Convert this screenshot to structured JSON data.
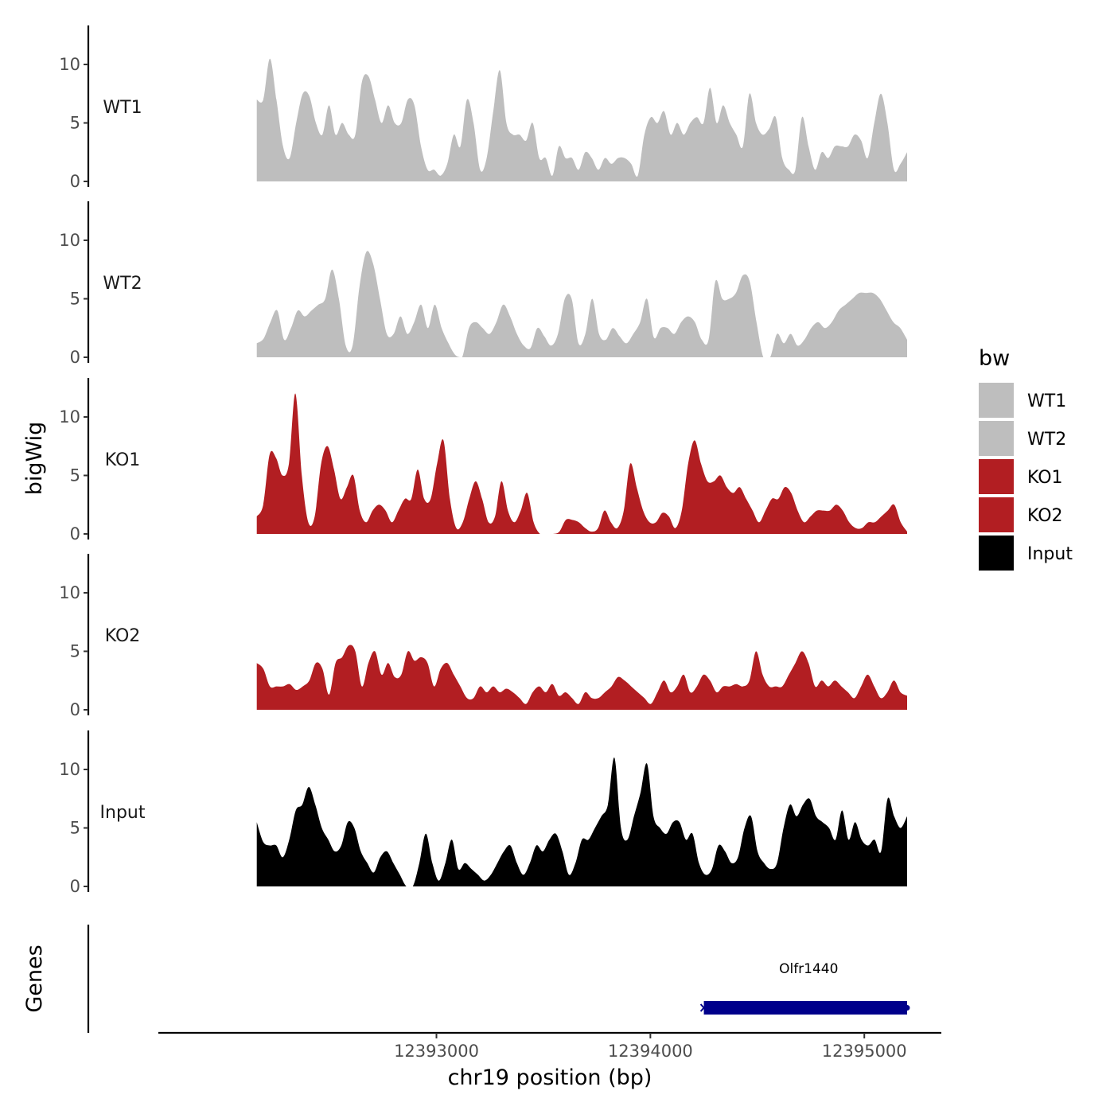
{
  "chart_data": {
    "type": "area",
    "ylabel": "bigWig",
    "xlabel": "chr19 position (bp)",
    "x_ticks": [
      {
        "value": 12393000,
        "label": "12393000"
      },
      {
        "value": 12394000,
        "label": "12394000"
      },
      {
        "value": 12395000,
        "label": "12395000"
      }
    ],
    "xlim": [
      12391700,
      12395360
    ],
    "ylim": [
      0,
      13.5
    ],
    "y_ticks": [
      {
        "value": 0,
        "label": "0"
      },
      {
        "value": 5,
        "label": "5"
      },
      {
        "value": 10,
        "label": "10"
      }
    ],
    "track_x_range": [
      12392160,
      12395200
    ],
    "legend": {
      "title": "bw",
      "position": "right"
    },
    "genes_label": "Genes",
    "series": [
      {
        "name": "WT1",
        "color": "#bebebe",
        "values": [
          7,
          7,
          10.5,
          7,
          3,
          2,
          5,
          7.5,
          7.3,
          5,
          4,
          6.5,
          4,
          5,
          4,
          4,
          8.5,
          9,
          7,
          5,
          6.5,
          5,
          5,
          7,
          6.5,
          3,
          1,
          1,
          0.5,
          1.5,
          4,
          3,
          7,
          5,
          1,
          2,
          6,
          9.5,
          5,
          4,
          4,
          3.5,
          5,
          2,
          2,
          0.5,
          3,
          2,
          2,
          1,
          2.5,
          2,
          1,
          2,
          1.5,
          2,
          2,
          1.5,
          0.5,
          4,
          5.5,
          5,
          6,
          4,
          5,
          4,
          5,
          5.5,
          5,
          8,
          5,
          6.5,
          5,
          4,
          3,
          7.5,
          5,
          4,
          4.5,
          5.5,
          2,
          1,
          1,
          5.5,
          3,
          1,
          2.5,
          2,
          3,
          3,
          3,
          4,
          3.5,
          2,
          5,
          7.5,
          5,
          1,
          1.5,
          2.5
        ]
      },
      {
        "name": "WT2",
        "color": "#bebebe",
        "values": [
          1.2,
          1.6,
          3,
          4,
          1.5,
          2.5,
          4,
          3.5,
          4,
          4.5,
          5,
          7.5,
          5,
          1,
          1,
          6,
          9,
          8,
          5,
          2,
          2,
          3.5,
          2,
          3,
          4.5,
          2.5,
          4.5,
          2.5,
          1.2,
          0.2,
          0,
          2.5,
          3,
          2.5,
          2,
          3,
          4.5,
          3.5,
          2,
          1,
          0.8,
          2.5,
          1.8,
          1,
          2,
          5,
          5,
          1.2,
          2,
          5,
          2,
          1.5,
          2.5,
          1.8,
          1.2,
          2,
          3,
          5,
          1.7,
          2.5,
          2.5,
          2,
          3,
          3.5,
          3,
          1.5,
          1.5,
          6.5,
          5,
          5,
          5.5,
          7,
          6.5,
          3,
          0,
          0,
          2,
          1.2,
          2,
          1,
          1.5,
          2.5,
          3,
          2.5,
          3,
          4,
          4.5,
          5,
          5.5,
          5.5,
          5.5,
          5,
          4,
          3,
          2.5,
          1.5
        ]
      },
      {
        "name": "KO1",
        "color": "#b21e22",
        "values": [
          1.5,
          2.5,
          6.8,
          6.5,
          5,
          6,
          12,
          5,
          1,
          1.5,
          6,
          7.5,
          5.5,
          3,
          4,
          5,
          2,
          1,
          2,
          2.5,
          2,
          1,
          2,
          3,
          3,
          5.5,
          3,
          3,
          6,
          8,
          3,
          0.5,
          1,
          3,
          4.5,
          3,
          1,
          1.5,
          4.5,
          2,
          1,
          2,
          3.5,
          1,
          0,
          0,
          0,
          0.2,
          1.2,
          1.2,
          1,
          0.5,
          0.2,
          0.5,
          2,
          1,
          0.5,
          2,
          6,
          4,
          2,
          1,
          1,
          1.8,
          1.5,
          0.5,
          2,
          6,
          8,
          6,
          4.5,
          4.5,
          5,
          4,
          3.5,
          4,
          3,
          2,
          1,
          2,
          3,
          3,
          4,
          3.5,
          2,
          1,
          1.5,
          2,
          2,
          2,
          2.5,
          2,
          1,
          0.5,
          0.5,
          1,
          1,
          1.5,
          2,
          2.5,
          1,
          0.2
        ]
      },
      {
        "name": "KO2",
        "color": "#b21e22",
        "values": [
          4,
          3.5,
          2,
          2,
          2,
          2.2,
          1.7,
          2,
          2.5,
          4,
          3.5,
          1.3,
          4,
          4.5,
          5.5,
          5,
          2,
          4,
          5,
          3,
          4,
          2.8,
          3,
          5,
          4.2,
          4.5,
          4,
          2,
          3.5,
          4,
          3,
          2,
          1,
          1,
          2,
          1.5,
          2,
          1.5,
          1.8,
          1.5,
          1,
          0.5,
          1.5,
          2,
          1.5,
          2.2,
          1.2,
          1.5,
          1,
          0.5,
          1.5,
          1,
          1,
          1.5,
          2,
          2.8,
          2.5,
          2,
          1.5,
          1,
          0.5,
          1.5,
          2.5,
          1.5,
          2,
          3,
          1.5,
          2,
          3,
          2.5,
          1.5,
          2,
          2,
          2.2,
          2,
          2.5,
          5,
          3,
          2,
          2,
          2,
          3,
          4,
          5,
          4,
          2,
          2.5,
          2,
          2.5,
          2,
          1.5,
          1,
          2,
          3,
          2,
          1,
          1.5,
          2.5,
          1.5,
          1.2
        ]
      },
      {
        "name": "Input",
        "color": "#000000",
        "values": [
          5.5,
          3.8,
          3.5,
          3.5,
          2.5,
          4,
          6.5,
          7,
          8.5,
          7,
          5,
          4,
          3,
          3.5,
          5.5,
          5,
          3,
          2,
          1.2,
          2.5,
          3,
          2,
          1,
          0,
          0,
          2,
          4.5,
          2,
          0.5,
          2,
          4,
          1.5,
          2,
          1.5,
          1,
          0.5,
          1,
          2,
          3,
          3.5,
          2,
          1,
          2,
          3.5,
          3,
          4,
          4.5,
          3,
          1,
          2,
          4,
          4,
          5,
          6,
          7,
          11,
          5,
          4,
          6,
          8,
          10.5,
          6,
          5,
          4.5,
          5.5,
          5.5,
          4,
          4.5,
          2,
          1,
          1.5,
          3.5,
          3,
          2,
          2.5,
          5,
          6,
          3,
          2,
          1.5,
          2,
          5,
          7,
          6,
          7,
          7.5,
          6,
          5.5,
          5,
          4,
          6.5,
          4,
          5.5,
          4,
          3.5,
          4,
          3,
          7.5,
          6,
          5,
          6
        ]
      }
    ],
    "genes": [
      {
        "name": "Olfr1440",
        "start": 12394250,
        "end": 12395200,
        "strand": "-",
        "color": "#00008b"
      }
    ]
  }
}
